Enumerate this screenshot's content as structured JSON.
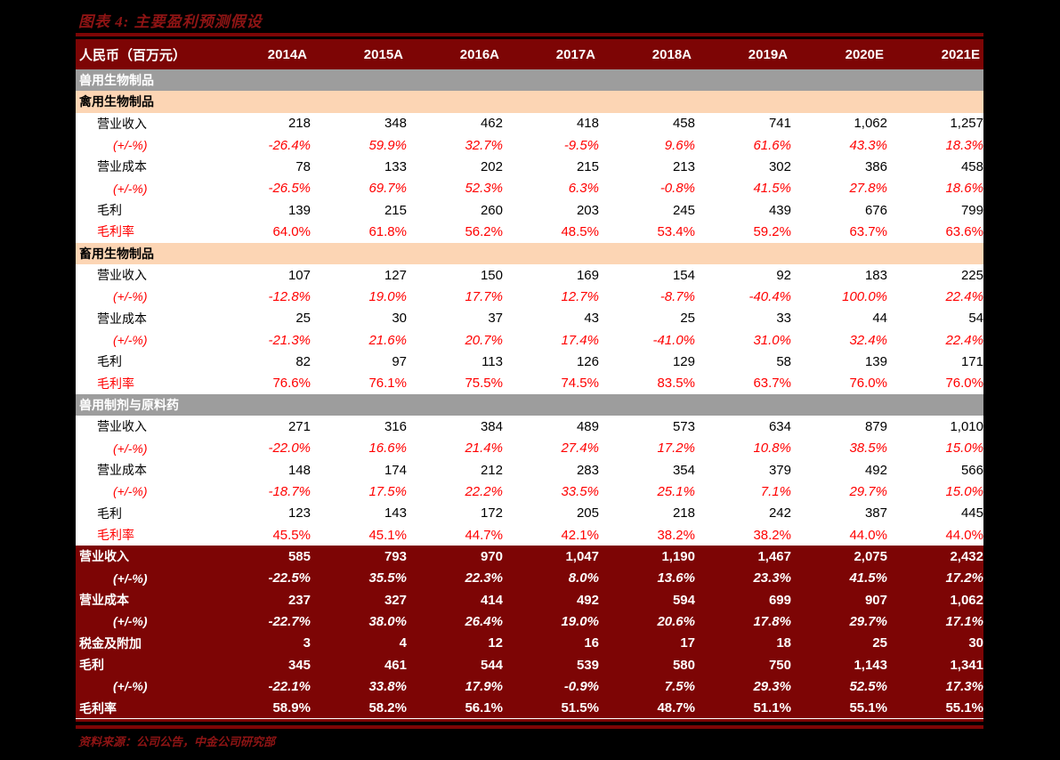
{
  "figure": {
    "title": "图表 4: 主要盈利预测假设",
    "source": "资料来源：公司公告，中金公司研究部"
  },
  "colors": {
    "maroon": "#7d0505",
    "title_red": "#8e1414",
    "gray": "#9d9d9d",
    "peach": "#fcd5b4",
    "red": "#ff0000",
    "page_bg": "#000000"
  },
  "table": {
    "header": {
      "label": "人民币（百万元）",
      "years": [
        "2014A",
        "2015A",
        "2016A",
        "2017A",
        "2018A",
        "2019A",
        "2020E",
        "2021E"
      ]
    },
    "rows": [
      {
        "type": "gray",
        "label": "兽用生物制品"
      },
      {
        "type": "peach",
        "label": "禽用生物制品"
      },
      {
        "type": "num",
        "label": "营业收入",
        "values": [
          "218",
          "348",
          "462",
          "418",
          "458",
          "741",
          "1,062",
          "1,257"
        ]
      },
      {
        "type": "pct",
        "label": "(+/-%)",
        "values": [
          "-26.4%",
          "59.9%",
          "32.7%",
          "-9.5%",
          "9.6%",
          "61.6%",
          "43.3%",
          "18.3%"
        ]
      },
      {
        "type": "num",
        "label": "营业成本",
        "values": [
          "78",
          "133",
          "202",
          "215",
          "213",
          "302",
          "386",
          "458"
        ]
      },
      {
        "type": "pct",
        "label": "(+/-%)",
        "values": [
          "-26.5%",
          "69.7%",
          "52.3%",
          "6.3%",
          "-0.8%",
          "41.5%",
          "27.8%",
          "18.6%"
        ]
      },
      {
        "type": "num",
        "label": "毛利",
        "values": [
          "139",
          "215",
          "260",
          "203",
          "245",
          "439",
          "676",
          "799"
        ]
      },
      {
        "type": "gm",
        "label": "毛利率",
        "values": [
          "64.0%",
          "61.8%",
          "56.2%",
          "48.5%",
          "53.4%",
          "59.2%",
          "63.7%",
          "63.6%"
        ]
      },
      {
        "type": "peach",
        "label": "畜用生物制品"
      },
      {
        "type": "num",
        "label": "营业收入",
        "values": [
          "107",
          "127",
          "150",
          "169",
          "154",
          "92",
          "183",
          "225"
        ]
      },
      {
        "type": "pct",
        "label": "(+/-%)",
        "values": [
          "-12.8%",
          "19.0%",
          "17.7%",
          "12.7%",
          "-8.7%",
          "-40.4%",
          "100.0%",
          "22.4%"
        ]
      },
      {
        "type": "num",
        "label": "营业成本",
        "values": [
          "25",
          "30",
          "37",
          "43",
          "25",
          "33",
          "44",
          "54"
        ]
      },
      {
        "type": "pct",
        "label": "(+/-%)",
        "values": [
          "-21.3%",
          "21.6%",
          "20.7%",
          "17.4%",
          "-41.0%",
          "31.0%",
          "32.4%",
          "22.4%"
        ]
      },
      {
        "type": "num",
        "label": "毛利",
        "values": [
          "82",
          "97",
          "113",
          "126",
          "129",
          "58",
          "139",
          "171"
        ]
      },
      {
        "type": "gm",
        "label": "毛利率",
        "values": [
          "76.6%",
          "76.1%",
          "75.5%",
          "74.5%",
          "83.5%",
          "63.7%",
          "76.0%",
          "76.0%"
        ]
      },
      {
        "type": "gray",
        "label": "兽用制剂与原料药"
      },
      {
        "type": "num",
        "label": "营业收入",
        "values": [
          "271",
          "316",
          "384",
          "489",
          "573",
          "634",
          "879",
          "1,010"
        ]
      },
      {
        "type": "pct",
        "label": "(+/-%)",
        "values": [
          "-22.0%",
          "16.6%",
          "21.4%",
          "27.4%",
          "17.2%",
          "10.8%",
          "38.5%",
          "15.0%"
        ]
      },
      {
        "type": "num",
        "label": "营业成本",
        "values": [
          "148",
          "174",
          "212",
          "283",
          "354",
          "379",
          "492",
          "566"
        ]
      },
      {
        "type": "pct",
        "label": "(+/-%)",
        "values": [
          "-18.7%",
          "17.5%",
          "22.2%",
          "33.5%",
          "25.1%",
          "7.1%",
          "29.7%",
          "15.0%"
        ]
      },
      {
        "type": "num",
        "label": "毛利",
        "values": [
          "123",
          "143",
          "172",
          "205",
          "218",
          "242",
          "387",
          "445"
        ]
      },
      {
        "type": "gm",
        "label": "毛利率",
        "values": [
          "45.5%",
          "45.1%",
          "44.7%",
          "42.1%",
          "38.2%",
          "38.2%",
          "44.0%",
          "44.0%"
        ]
      },
      {
        "type": "fnum",
        "label": "营业收入",
        "values": [
          "585",
          "793",
          "970",
          "1,047",
          "1,190",
          "1,467",
          "2,075",
          "2,432"
        ]
      },
      {
        "type": "fpct",
        "label": "(+/-%)",
        "values": [
          "-22.5%",
          "35.5%",
          "22.3%",
          "8.0%",
          "13.6%",
          "23.3%",
          "41.5%",
          "17.2%"
        ]
      },
      {
        "type": "fnum",
        "label": "营业成本",
        "values": [
          "237",
          "327",
          "414",
          "492",
          "594",
          "699",
          "907",
          "1,062"
        ]
      },
      {
        "type": "fpct",
        "label": "(+/-%)",
        "values": [
          "-22.7%",
          "38.0%",
          "26.4%",
          "19.0%",
          "20.6%",
          "17.8%",
          "29.7%",
          "17.1%"
        ]
      },
      {
        "type": "fnum",
        "label": "税金及附加",
        "values": [
          "3",
          "4",
          "12",
          "16",
          "17",
          "18",
          "25",
          "30"
        ]
      },
      {
        "type": "fnum",
        "label": "毛利",
        "values": [
          "345",
          "461",
          "544",
          "539",
          "580",
          "750",
          "1,143",
          "1,341"
        ]
      },
      {
        "type": "fpct",
        "label": "(+/-%)",
        "values": [
          "-22.1%",
          "33.8%",
          "17.9%",
          "-0.9%",
          "7.5%",
          "29.3%",
          "52.5%",
          "17.3%"
        ]
      },
      {
        "type": "fgm",
        "label": "毛利率",
        "values": [
          "58.9%",
          "58.2%",
          "56.1%",
          "51.5%",
          "48.7%",
          "51.1%",
          "55.1%",
          "55.1%"
        ]
      }
    ]
  }
}
